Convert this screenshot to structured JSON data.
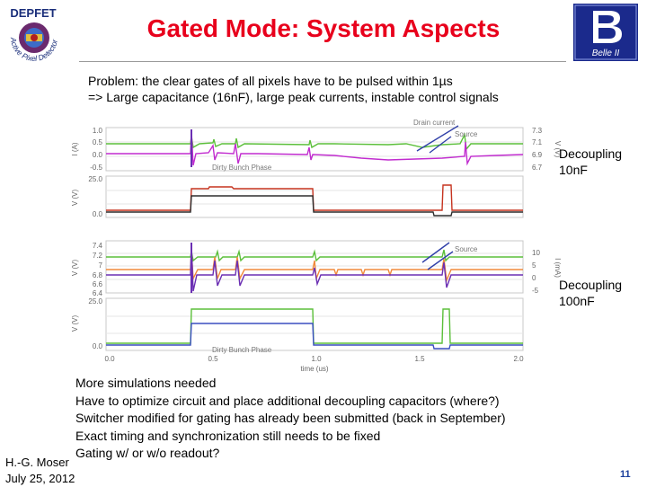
{
  "header": {
    "title": "Gated Mode: System Aspects",
    "logo_left_text": "DEPFET",
    "logo_left_ring": "Active Pixel Detector",
    "logo_right_text": "Belle II"
  },
  "problem": {
    "line1": "Problem: the clear gates of all pixels have to be pulsed within 1µs",
    "line2": "=> Large capacitance (16nF), large peak currents, instable control signals"
  },
  "side_labels": [
    {
      "line1": "Decoupling",
      "line2": "10nF"
    },
    {
      "line1": "Decoupling",
      "line2": "100nF"
    }
  ],
  "figure": {
    "panel_labels": {
      "drain_current": "Drain current",
      "source": "Source",
      "dirty_bunch": "Dirty Bunch Phase"
    },
    "panel1": {
      "left_ticks": [
        "1.0",
        "0.5",
        "0.0",
        "-0.5"
      ],
      "right_ticks": [
        "7.3",
        "7.1",
        "6.9",
        "6.7"
      ],
      "left_axis": "I (A)",
      "right_axis": "V (V)"
    },
    "panel2": {
      "left_ticks": [
        "25.0",
        "0.0"
      ],
      "left_axis": "V (V)"
    },
    "panel3": {
      "left_ticks": [
        "7.4",
        "7.2",
        "7",
        "6.8",
        "6.6",
        "6.4"
      ],
      "right_ticks": [
        "10",
        "5",
        "0",
        "-5"
      ],
      "left_axis": "V (V)",
      "right_axis": "I (mA)"
    },
    "panel4": {
      "left_ticks": [
        "25.0",
        "0.0"
      ],
      "left_axis": "V (V)"
    },
    "x_ticks": [
      "0.0",
      "0.5",
      "1.0",
      "1.5",
      "2.0"
    ],
    "x_label": "time (us)"
  },
  "bullets": [
    "More simulations needed",
    "Have to optimize circuit and place additional decoupling capacitors (where?)",
    "Switcher modified for gating has already been submitted (back in September)",
    "Exact timing and synchronization still needs to be fixed",
    "Gating w/ or w/o readout?"
  ],
  "footer": {
    "author": "H.-G. Moser",
    "date": "July 25, 2012",
    "page": "11"
  },
  "colors": {
    "title": "#e8001c",
    "page_number": "#1a3e9c",
    "trace_green": "#5bbf3a",
    "trace_magenta": "#c12ccf",
    "trace_purple": "#6b2fb3",
    "trace_orange": "#f08a3c",
    "trace_red": "#c6331f",
    "trace_dark": "#2e2e2e",
    "arrow_blue": "#2f3fa8"
  }
}
